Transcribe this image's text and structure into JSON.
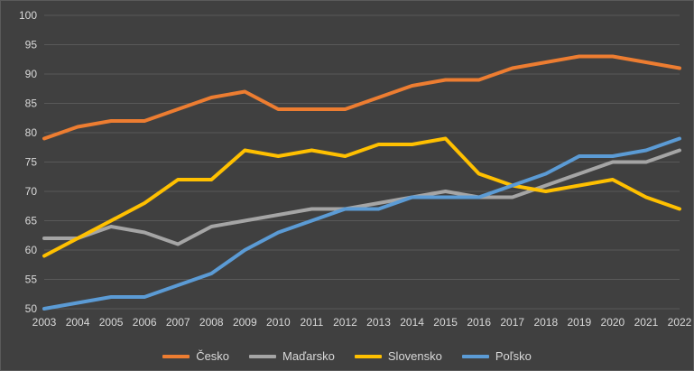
{
  "chart_data": {
    "type": "line",
    "title": "",
    "xlabel": "",
    "ylabel": "",
    "ylim": [
      50,
      100
    ],
    "y_tick_step": 5,
    "grid": true,
    "legend_position": "bottom",
    "background_color": "#404040",
    "gridline_color": "#595959",
    "text_color": "#d9d9d9",
    "categories": [
      "2003",
      "2004",
      "2005",
      "2006",
      "2007",
      "2008",
      "2009",
      "2010",
      "2011",
      "2012",
      "2013",
      "2014",
      "2015",
      "2016",
      "2017",
      "2018",
      "2019",
      "2020",
      "2021",
      "2022"
    ],
    "y_ticks": [
      50,
      55,
      60,
      65,
      70,
      75,
      80,
      85,
      90,
      95,
      100
    ],
    "series": [
      {
        "name": "Česko",
        "color": "#ED7D31",
        "stroke_width": 4,
        "values": [
          79,
          81,
          82,
          82,
          84,
          86,
          87,
          84,
          84,
          84,
          86,
          88,
          89,
          89,
          91,
          92,
          93,
          93,
          92,
          91
        ]
      },
      {
        "name": "Maďarsko",
        "color": "#A5A5A5",
        "stroke_width": 4,
        "values": [
          62,
          62,
          64,
          63,
          61,
          64,
          65,
          66,
          67,
          67,
          68,
          69,
          70,
          69,
          69,
          71,
          73,
          75,
          75,
          77
        ]
      },
      {
        "name": "Slovensko",
        "color": "#FFC000",
        "stroke_width": 4,
        "values": [
          59,
          62,
          65,
          68,
          72,
          72,
          77,
          76,
          77,
          76,
          78,
          78,
          79,
          73,
          71,
          70,
          71,
          72,
          69,
          67
        ]
      },
      {
        "name": "Poľsko",
        "color": "#5B9BD5",
        "stroke_width": 4,
        "values": [
          50,
          51,
          52,
          52,
          54,
          56,
          60,
          63,
          65,
          67,
          67,
          69,
          69,
          69,
          71,
          73,
          76,
          76,
          77,
          79
        ]
      }
    ]
  }
}
